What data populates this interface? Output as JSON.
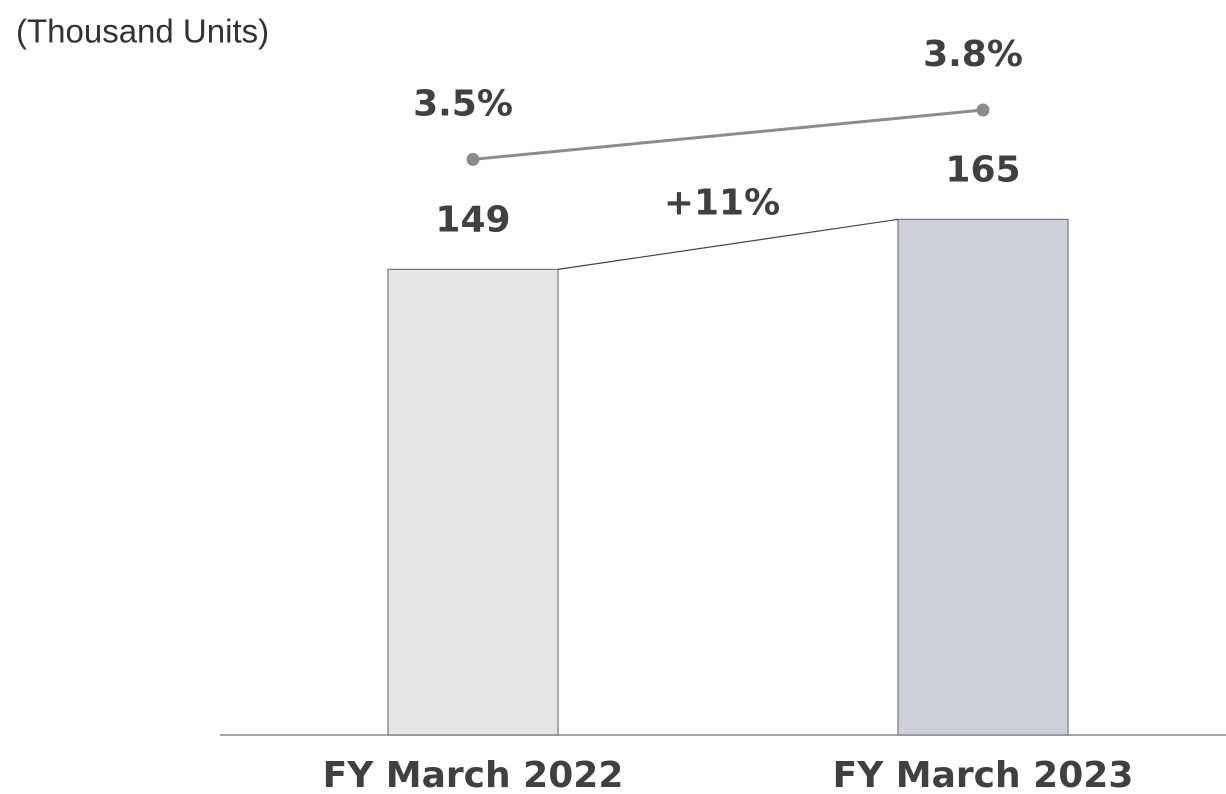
{
  "chart_data": {
    "type": "bar",
    "title": "(Thousand Units)",
    "categories": [
      "FY March 2022",
      "FY March 2023"
    ],
    "series": [
      {
        "type": "bar",
        "values": [
          149,
          165
        ],
        "colors": [
          "#e5e5e5",
          "#cdd0d9"
        ]
      },
      {
        "type": "line",
        "axis": "y2",
        "values": [
          3.5,
          3.8
        ],
        "value_labels": [
          "3.5%",
          "3.8%"
        ],
        "color": "#8c8c8c"
      }
    ],
    "annotations": [
      "+11%"
    ],
    "ylim": [
      0,
      200
    ],
    "y2lim": [
      0,
      3.8
    ]
  }
}
